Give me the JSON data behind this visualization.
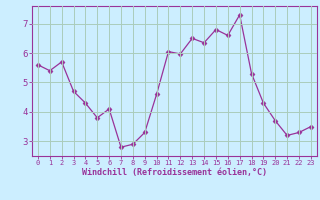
{
  "x": [
    0,
    1,
    2,
    3,
    4,
    5,
    6,
    7,
    8,
    9,
    10,
    11,
    12,
    13,
    14,
    15,
    16,
    17,
    18,
    19,
    20,
    21,
    22,
    23
  ],
  "y": [
    5.6,
    5.4,
    5.7,
    4.7,
    4.3,
    3.8,
    4.1,
    2.8,
    2.9,
    3.3,
    4.6,
    6.05,
    5.97,
    6.5,
    6.35,
    6.8,
    6.6,
    7.3,
    5.3,
    4.3,
    3.7,
    3.2,
    3.3,
    3.5
  ],
  "line_color": "#993399",
  "marker_color": "#993399",
  "bg_color": "#cceeff",
  "grid_color": "#aaccbb",
  "axis_color": "#993399",
  "xlabel": "Windchill (Refroidissement éolien,°C)",
  "xlim": [
    -0.5,
    23.5
  ],
  "ylim": [
    2.5,
    7.6
  ],
  "yticks": [
    3,
    4,
    5,
    6,
    7
  ],
  "xticks": [
    0,
    1,
    2,
    3,
    4,
    5,
    6,
    7,
    8,
    9,
    10,
    11,
    12,
    13,
    14,
    15,
    16,
    17,
    18,
    19,
    20,
    21,
    22,
    23
  ]
}
